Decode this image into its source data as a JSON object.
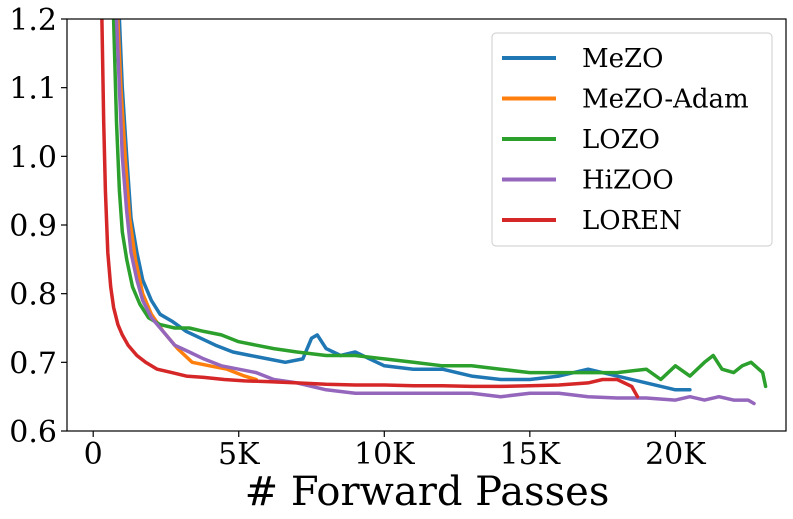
{
  "chart_data": {
    "type": "line",
    "title": "",
    "xlabel": "# Forward Passes",
    "ylabel": "",
    "xlim": [
      -900,
      23800
    ],
    "ylim": [
      0.6,
      1.2
    ],
    "grid": false,
    "legend_position": "top-right",
    "xticks": [
      {
        "value": 0,
        "label": "0"
      },
      {
        "value": 5000,
        "label": "5K"
      },
      {
        "value": 10000,
        "label": "10K"
      },
      {
        "value": 15000,
        "label": "15K"
      },
      {
        "value": 20000,
        "label": "20K"
      }
    ],
    "yticks": [
      {
        "value": 0.6,
        "label": "0.6"
      },
      {
        "value": 0.7,
        "label": "0.7"
      },
      {
        "value": 0.8,
        "label": "0.8"
      },
      {
        "value": 0.9,
        "label": "0.9"
      },
      {
        "value": 1.0,
        "label": "1.0"
      },
      {
        "value": 1.1,
        "label": "1.1"
      },
      {
        "value": 1.2,
        "label": "1.2"
      }
    ],
    "series": [
      {
        "name": "MeZO",
        "color": "#1f77b4",
        "x": [
          900,
          1000,
          1150,
          1300,
          1500,
          1700,
          2000,
          2300,
          2700,
          3200,
          3700,
          4200,
          4800,
          5400,
          6000,
          6600,
          7200,
          7500,
          7700,
          8000,
          8500,
          9000,
          9500,
          10000,
          11000,
          12000,
          13000,
          14000,
          15000,
          16000,
          17000,
          18000,
          19000,
          20000,
          20500
        ],
        "y": [
          1.2,
          1.1,
          1.0,
          0.91,
          0.86,
          0.82,
          0.79,
          0.77,
          0.76,
          0.745,
          0.735,
          0.725,
          0.715,
          0.71,
          0.705,
          0.7,
          0.705,
          0.735,
          0.74,
          0.72,
          0.71,
          0.715,
          0.705,
          0.695,
          0.69,
          0.69,
          0.68,
          0.675,
          0.675,
          0.68,
          0.69,
          0.68,
          0.67,
          0.66,
          0.66
        ]
      },
      {
        "name": "MeZO-Adam",
        "color": "#ff7f0e",
        "x": [
          850,
          950,
          1100,
          1250,
          1450,
          1700,
          2000,
          2400,
          2900,
          3400,
          4000,
          4600,
          5200,
          5600
        ],
        "y": [
          1.2,
          1.1,
          1.0,
          0.91,
          0.85,
          0.8,
          0.77,
          0.745,
          0.72,
          0.7,
          0.695,
          0.69,
          0.68,
          0.675
        ]
      },
      {
        "name": "LOZO",
        "color": "#2ca02c",
        "x": [
          700,
          800,
          900,
          1000,
          1150,
          1350,
          1600,
          1900,
          2300,
          2800,
          3300,
          3800,
          4400,
          5000,
          5600,
          6200,
          7000,
          8000,
          9000,
          10000,
          11000,
          12000,
          13000,
          14000,
          15000,
          16000,
          17000,
          18000,
          19000,
          19500,
          20000,
          20500,
          21000,
          21300,
          21600,
          22000,
          22300,
          22600,
          23000,
          23100
        ],
        "y": [
          1.2,
          1.05,
          0.95,
          0.89,
          0.85,
          0.81,
          0.785,
          0.765,
          0.755,
          0.75,
          0.75,
          0.745,
          0.74,
          0.73,
          0.725,
          0.72,
          0.715,
          0.71,
          0.71,
          0.705,
          0.7,
          0.695,
          0.695,
          0.69,
          0.685,
          0.685,
          0.685,
          0.685,
          0.69,
          0.675,
          0.695,
          0.68,
          0.7,
          0.71,
          0.69,
          0.685,
          0.695,
          0.7,
          0.685,
          0.665
        ]
      },
      {
        "name": "HiZOO",
        "color": "#9467bd",
        "x": [
          800,
          900,
          1000,
          1150,
          1300,
          1500,
          1700,
          2000,
          2400,
          2800,
          3300,
          3800,
          4400,
          5000,
          5600,
          6200,
          7000,
          8000,
          9000,
          10000,
          11000,
          12000,
          13000,
          14000,
          15000,
          16000,
          17000,
          18000,
          19000,
          20000,
          20500,
          21000,
          21500,
          22000,
          22500,
          22700
        ],
        "y": [
          1.2,
          1.1,
          1.0,
          0.92,
          0.86,
          0.82,
          0.79,
          0.765,
          0.745,
          0.725,
          0.715,
          0.705,
          0.695,
          0.69,
          0.685,
          0.675,
          0.67,
          0.66,
          0.655,
          0.655,
          0.655,
          0.655,
          0.655,
          0.65,
          0.655,
          0.655,
          0.65,
          0.648,
          0.648,
          0.645,
          0.65,
          0.645,
          0.65,
          0.645,
          0.645,
          0.64
        ]
      },
      {
        "name": "LOREN",
        "color": "#d62728",
        "x": [
          300,
          360,
          420,
          500,
          600,
          700,
          850,
          1000,
          1200,
          1500,
          1800,
          2200,
          2700,
          3200,
          3800,
          4500,
          5200,
          6000,
          7000,
          8000,
          9000,
          10000,
          11000,
          12000,
          13000,
          14000,
          15000,
          16000,
          17000,
          17500,
          18000,
          18500,
          18700
        ],
        "y": [
          1.2,
          1.05,
          0.95,
          0.86,
          0.81,
          0.78,
          0.755,
          0.74,
          0.725,
          0.71,
          0.7,
          0.69,
          0.685,
          0.68,
          0.678,
          0.675,
          0.673,
          0.672,
          0.67,
          0.668,
          0.667,
          0.667,
          0.666,
          0.666,
          0.665,
          0.665,
          0.666,
          0.667,
          0.67,
          0.675,
          0.675,
          0.665,
          0.65
        ]
      }
    ]
  }
}
